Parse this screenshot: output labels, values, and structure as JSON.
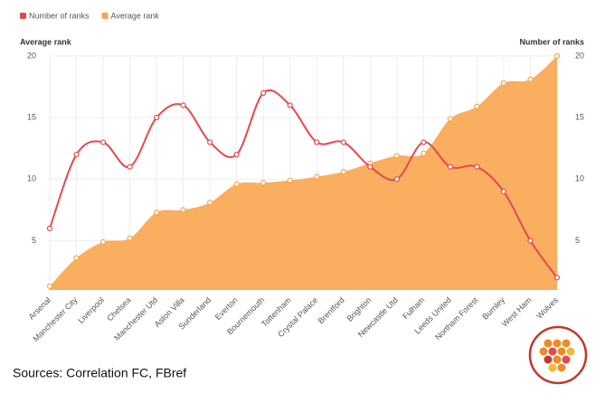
{
  "chart_data": {
    "type": "line",
    "categories": [
      "Arsenal",
      "Manchester City",
      "Liverpool",
      "Chelsea",
      "Manchester Utd",
      "Aston Villa",
      "Sunderland",
      "Everton",
      "Bournemouth",
      "Tottenham",
      "Crystal Palace",
      "Brentford",
      "Brighton",
      "Newcastle Utd",
      "Fulham",
      "Leeds United",
      "Northam Forest",
      "Burnley",
      "West Ham",
      "Wolves"
    ],
    "series": [
      {
        "name": "Number of ranks",
        "color": "#e5484d",
        "axis": "y2",
        "values": [
          6,
          12,
          13,
          11,
          15,
          16,
          13,
          12,
          17,
          16,
          13,
          13,
          11,
          10,
          13,
          11,
          11,
          9,
          5,
          2
        ]
      },
      {
        "name": "Average rank",
        "color": "#f8a54f",
        "values": [
          1.3,
          3.6,
          4.9,
          5.2,
          7.3,
          7.5,
          8.1,
          9.6,
          9.7,
          9.9,
          10.2,
          10.6,
          11.3,
          11.9,
          12.1,
          14.9,
          15.9,
          17.8,
          18.1,
          20
        ]
      }
    ],
    "ylabel": "Average rank",
    "y2label": "Number of ranks",
    "ylim": [
      1,
      20
    ],
    "yticks": [
      5,
      10,
      15,
      20
    ],
    "y2lim": [
      1,
      20
    ],
    "y2ticks": [
      5,
      10,
      15,
      20
    ],
    "grid": true,
    "source": "Sources: Correlation FC, FBref"
  }
}
